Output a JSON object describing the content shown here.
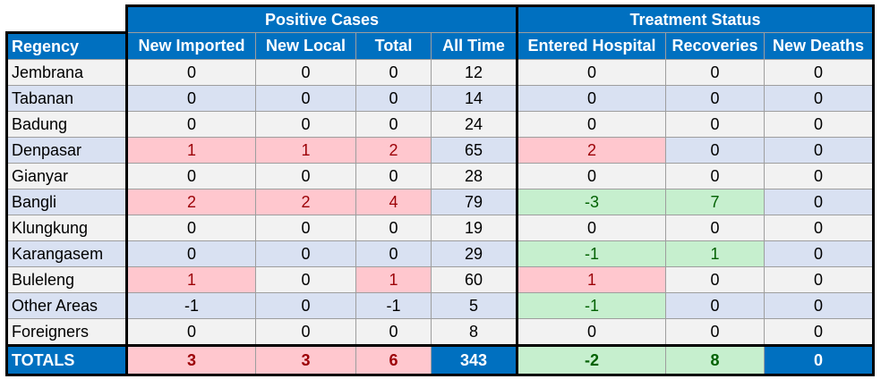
{
  "groups": {
    "positive": "Positive Cases",
    "treatment": "Treatment Status"
  },
  "headers": [
    "Regency",
    "New Imported",
    "New Local",
    "Total",
    "All Time",
    "Entered Hospital",
    "Recoveries",
    "New Deaths"
  ],
  "rows": [
    {
      "name": "Jembrana",
      "values": [
        "0",
        "0",
        "0",
        "12",
        "0",
        "0",
        "0"
      ]
    },
    {
      "name": "Tabanan",
      "values": [
        "0",
        "0",
        "0",
        "14",
        "0",
        "0",
        "0"
      ]
    },
    {
      "name": "Badung",
      "values": [
        "0",
        "0",
        "0",
        "24",
        "0",
        "0",
        "0"
      ]
    },
    {
      "name": "Denpasar",
      "values": [
        "1",
        "1",
        "2",
        "65",
        "2",
        "0",
        "0"
      ]
    },
    {
      "name": "Gianyar",
      "values": [
        "0",
        "0",
        "0",
        "28",
        "0",
        "0",
        "0"
      ]
    },
    {
      "name": "Bangli",
      "values": [
        "2",
        "2",
        "4",
        "79",
        "-3",
        "7",
        "0"
      ]
    },
    {
      "name": "Klungkung",
      "values": [
        "0",
        "0",
        "0",
        "19",
        "0",
        "0",
        "0"
      ]
    },
    {
      "name": "Karangasem",
      "values": [
        "0",
        "0",
        "0",
        "29",
        "-1",
        "1",
        "0"
      ]
    },
    {
      "name": "Buleleng",
      "values": [
        "1",
        "0",
        "1",
        "60",
        "1",
        "0",
        "0"
      ]
    },
    {
      "name": "Other Areas",
      "values": [
        "-1",
        "0",
        "-1",
        "5",
        "-1",
        "0",
        "0"
      ]
    },
    {
      "name": "Foreigners",
      "values": [
        "0",
        "0",
        "0",
        "8",
        "0",
        "0",
        "0"
      ]
    }
  ],
  "totals": {
    "name": "TOTALS",
    "values": [
      "3",
      "3",
      "6",
      "343",
      "-2",
      "8",
      "0"
    ]
  },
  "colors": {
    "header_blue": "#0070c0",
    "positive_pink": "#ffc7ce",
    "positive_text": "#9c0006",
    "good_green": "#c6efce",
    "good_text": "#006100"
  }
}
